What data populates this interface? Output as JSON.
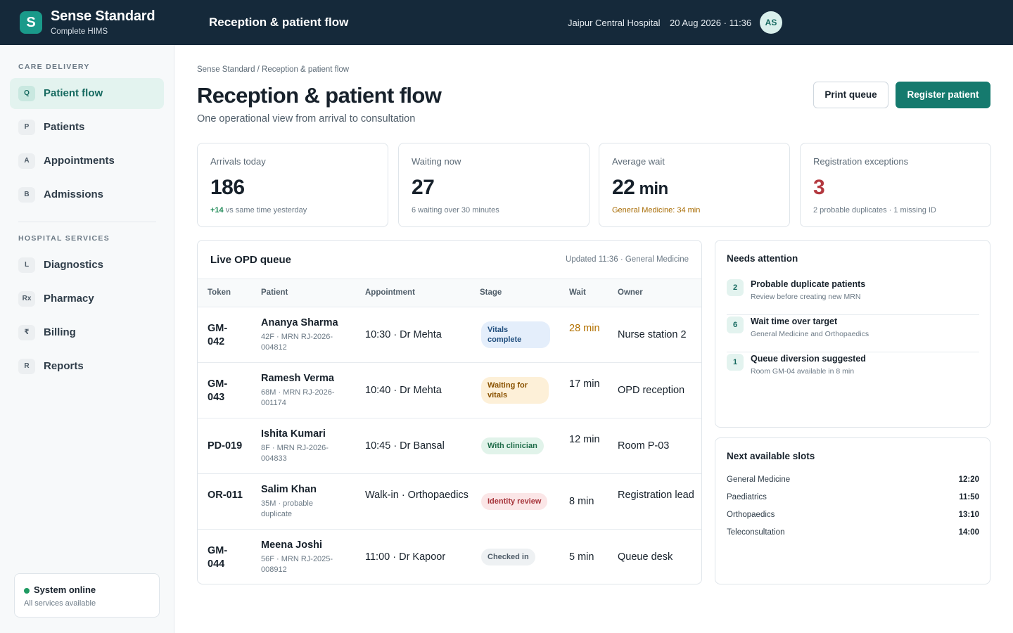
{
  "header": {
    "logo_letter": "S",
    "brand": "Sense Standard",
    "brand_sub": "Complete HIMS",
    "title": "Reception & patient flow",
    "hospital": "Jaipur Central Hospital",
    "datetime": "20 Aug 2026 · 11:36",
    "avatar_initials": "AS"
  },
  "sidebar": {
    "care_label": "CARE DELIVERY",
    "care_items": [
      {
        "badge": "Q",
        "label": "Patient flow"
      },
      {
        "badge": "P",
        "label": "Patients"
      },
      {
        "badge": "A",
        "label": "Appointments"
      },
      {
        "badge": "B",
        "label": "Admissions"
      }
    ],
    "services_label": "HOSPITAL SERVICES",
    "service_items": [
      {
        "badge": "L",
        "label": "Diagnostics"
      },
      {
        "badge": "Rx",
        "label": "Pharmacy"
      },
      {
        "badge": "₹",
        "label": "Billing"
      },
      {
        "badge": "R",
        "label": "Reports"
      }
    ],
    "system": {
      "title": "System online",
      "sub": "All services available",
      "status_color": "#1f9a62"
    }
  },
  "main": {
    "breadcrumb": "Sense Standard / Reception & patient flow",
    "title": "Reception & patient flow",
    "subtitle": "One operational view from arrival to consultation",
    "print_label": "Print queue",
    "register_label": "Register patient"
  },
  "kpis": [
    {
      "label": "Arrivals today",
      "value": "186",
      "foot_up": "+14",
      "foot": " vs same time yesterday"
    },
    {
      "label": "Waiting now",
      "value": "27",
      "foot": "6 waiting over 30 minutes"
    },
    {
      "label": "Average wait",
      "value": "22",
      "unit": " min",
      "foot": "General Medicine: 34 min"
    },
    {
      "label": "Registration exceptions",
      "value": "3",
      "foot": "2 probable duplicates · 1 missing ID"
    }
  ],
  "queue": {
    "title": "Live OPD queue",
    "meta": "Updated 11:36 · General Medicine",
    "columns": [
      "Token",
      "Patient",
      "Appointment",
      "Stage",
      "Wait",
      "Owner"
    ],
    "rows": [
      {
        "token": "GM-042",
        "name": "Ananya Sharma",
        "meta": "42F · MRN RJ-2026-004812",
        "appointment": "10:30 · Dr Mehta",
        "stage": "Vitals complete",
        "wait": "28 min",
        "owner": "Nurse station 2"
      },
      {
        "token": "GM-043",
        "name": "Ramesh Verma",
        "meta": "68M · MRN RJ-2026-001174",
        "appointment": "10:40 · Dr Mehta",
        "stage": "Waiting for vitals",
        "wait": "17 min",
        "owner": "OPD reception"
      },
      {
        "token": "PD-019",
        "name": "Ishita Kumari",
        "meta": "8F · MRN RJ-2026-004833",
        "appointment": "10:45 · Dr Bansal",
        "stage": "With clinician",
        "wait": "12 min",
        "owner": "Room P-03"
      },
      {
        "token": "OR-011",
        "name": "Salim Khan",
        "meta": "35M · probable duplicate",
        "appointment": "Walk-in · Orthopaedics",
        "stage": "Identity review",
        "wait": "8 min",
        "owner": "Registration lead"
      },
      {
        "token": "GM-044",
        "name": "Meena Joshi",
        "meta": "56F · MRN RJ-2025-008912",
        "appointment": "11:00 · Dr Kapoor",
        "stage": "Checked in",
        "wait": "5 min",
        "owner": "Queue desk"
      }
    ]
  },
  "attention": {
    "title": "Needs attention",
    "items": [
      {
        "count": "2",
        "title": "Probable duplicate patients",
        "sub": "Review before creating new MRN"
      },
      {
        "count": "6",
        "title": "Wait time over target",
        "sub": "General Medicine and Orthopaedics"
      },
      {
        "count": "1",
        "title": "Queue diversion suggested",
        "sub": "Room GM-04 available in 8 min"
      }
    ]
  },
  "slots": {
    "title": "Next available slots",
    "items": [
      {
        "name": "General Medicine",
        "time": "12:20"
      },
      {
        "name": "Paediatrics",
        "time": "11:50"
      },
      {
        "name": "Orthopaedics",
        "time": "13:10"
      },
      {
        "name": "Teleconsultation",
        "time": "14:00"
      }
    ]
  }
}
